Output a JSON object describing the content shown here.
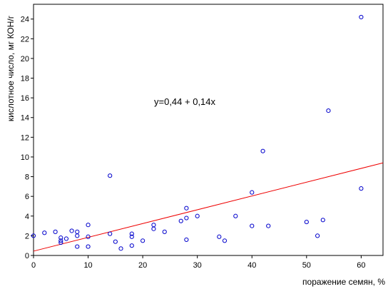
{
  "chart_data": {
    "type": "scatter",
    "xlabel": "поражение семян, %",
    "ylabel": "кислотное число, мг КОН/г",
    "annotation": "y=0,44 + 0,14x",
    "xlim": [
      0,
      64
    ],
    "ylim": [
      0,
      25.5
    ],
    "x_ticks": [
      0,
      10,
      20,
      30,
      40,
      50,
      60
    ],
    "y_ticks": [
      0,
      2,
      4,
      6,
      8,
      10,
      12,
      14,
      16,
      18,
      20,
      22,
      24
    ],
    "x_tick_labels": [
      "0",
      "10",
      "20",
      "30",
      "40",
      "50",
      "60"
    ],
    "y_tick_labels": [
      "0",
      "2",
      "4",
      "6",
      "8",
      "10",
      "12",
      "14",
      "16",
      "18",
      "20",
      "22",
      "24"
    ],
    "grid": false,
    "point_color": "#0000cc",
    "line_color": "#ee0000",
    "regression": {
      "intercept": 0.44,
      "slope": 0.14
    },
    "points": [
      [
        0,
        2.0
      ],
      [
        2,
        2.3
      ],
      [
        4,
        2.4
      ],
      [
        5,
        1.8
      ],
      [
        5,
        1.5
      ],
      [
        5,
        1.3
      ],
      [
        6,
        1.7
      ],
      [
        7,
        2.5
      ],
      [
        8,
        2.4
      ],
      [
        8,
        2.0
      ],
      [
        8,
        0.9
      ],
      [
        10,
        3.1
      ],
      [
        10,
        1.9
      ],
      [
        10,
        0.9
      ],
      [
        14,
        8.1
      ],
      [
        14,
        2.2
      ],
      [
        15,
        1.4
      ],
      [
        16,
        0.7
      ],
      [
        18,
        2.2
      ],
      [
        18,
        1.9
      ],
      [
        18,
        1.0
      ],
      [
        20,
        1.5
      ],
      [
        22,
        3.1
      ],
      [
        22,
        2.7
      ],
      [
        24,
        2.4
      ],
      [
        27,
        3.5
      ],
      [
        28,
        4.8
      ],
      [
        28,
        3.8
      ],
      [
        28,
        1.6
      ],
      [
        30,
        4.0
      ],
      [
        34,
        1.9
      ],
      [
        35,
        1.5
      ],
      [
        37,
        4.0
      ],
      [
        40,
        6.4
      ],
      [
        40,
        3.0
      ],
      [
        42,
        10.6
      ],
      [
        43,
        3.0
      ],
      [
        50,
        3.4
      ],
      [
        52,
        2.0
      ],
      [
        53,
        3.6
      ],
      [
        54,
        14.7
      ],
      [
        60,
        24.2
      ],
      [
        60,
        6.8
      ]
    ]
  }
}
